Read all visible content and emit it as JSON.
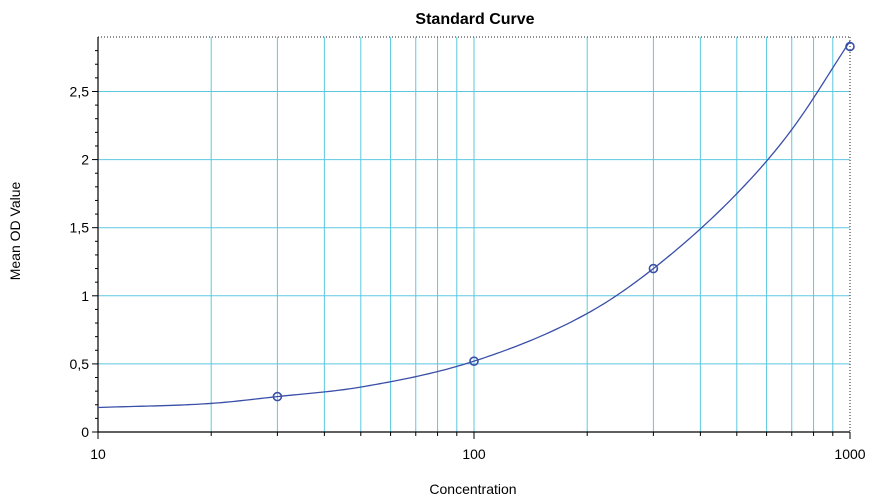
{
  "chart_data": {
    "type": "scatter",
    "title": "Standard Curve",
    "xlabel": "Concentration",
    "ylabel": "Mean OD Value",
    "x_scale": "log",
    "xlim": [
      10,
      1000
    ],
    "ylim": [
      0,
      2.9
    ],
    "x_ticks": [
      10,
      100,
      1000
    ],
    "x_tick_labels": [
      "10",
      "100",
      "1000"
    ],
    "y_ticks": [
      0,
      0.5,
      1,
      1.5,
      2,
      2.5
    ],
    "y_tick_labels": [
      "0",
      "0,5",
      "1",
      "1,5",
      "2",
      "2,5"
    ],
    "grid": true,
    "series": [
      {
        "kind": "points",
        "x": [
          30,
          100,
          300,
          1000
        ],
        "y": [
          0.26,
          0.52,
          1.2,
          2.83
        ]
      },
      {
        "kind": "fit_curve",
        "x": [
          10,
          20,
          30,
          50,
          100,
          200,
          300,
          500,
          700,
          1000
        ],
        "y": [
          0.18,
          0.21,
          0.26,
          0.33,
          0.52,
          0.87,
          1.2,
          1.75,
          2.22,
          2.87
        ]
      }
    ],
    "colors": {
      "series": "#3a4fa8",
      "grid": "#5bc8e0"
    }
  }
}
